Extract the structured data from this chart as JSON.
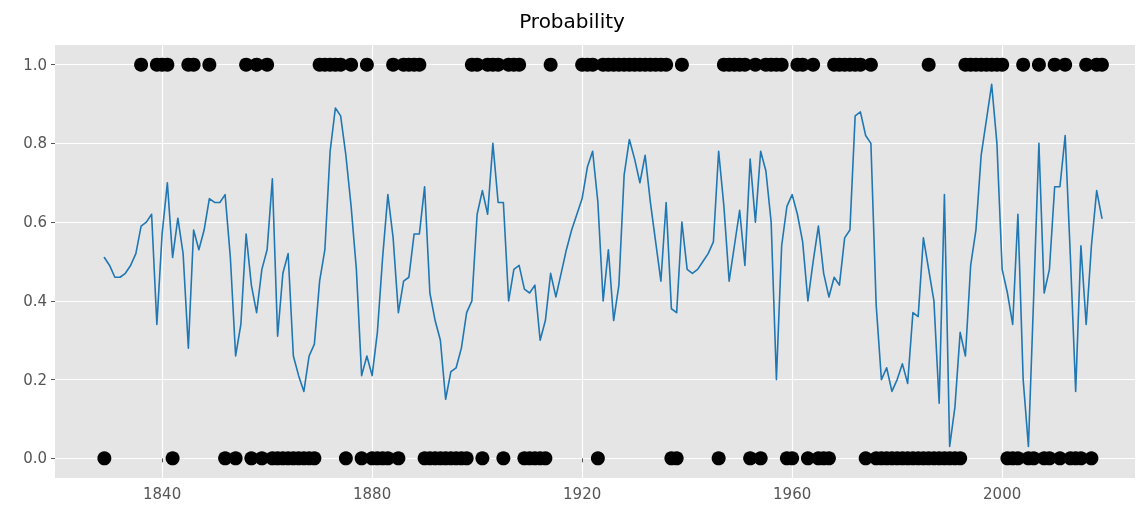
{
  "chart_data": {
    "type": "line",
    "title": "Probability",
    "x": [
      1829,
      1830,
      1831,
      1832,
      1833,
      1834,
      1835,
      1836,
      1837,
      1838,
      1839,
      1840,
      1841,
      1842,
      1843,
      1844,
      1845,
      1846,
      1847,
      1848,
      1849,
      1850,
      1851,
      1852,
      1853,
      1854,
      1855,
      1856,
      1857,
      1858,
      1859,
      1860,
      1861,
      1862,
      1863,
      1864,
      1865,
      1866,
      1867,
      1868,
      1869,
      1870,
      1871,
      1872,
      1873,
      1874,
      1875,
      1876,
      1877,
      1878,
      1879,
      1880,
      1881,
      1882,
      1883,
      1884,
      1885,
      1886,
      1887,
      1888,
      1889,
      1890,
      1891,
      1892,
      1893,
      1894,
      1895,
      1896,
      1897,
      1898,
      1899,
      1900,
      1901,
      1902,
      1903,
      1904,
      1905,
      1906,
      1907,
      1908,
      1909,
      1910,
      1911,
      1912,
      1913,
      1914,
      1915,
      1916,
      1917,
      1918,
      1919,
      1920,
      1921,
      1922,
      1923,
      1924,
      1925,
      1926,
      1927,
      1928,
      1929,
      1930,
      1931,
      1932,
      1933,
      1934,
      1935,
      1936,
      1937,
      1938,
      1939,
      1940,
      1941,
      1942,
      1943,
      1944,
      1945,
      1946,
      1947,
      1948,
      1949,
      1950,
      1951,
      1952,
      1953,
      1954,
      1955,
      1956,
      1957,
      1958,
      1959,
      1960,
      1961,
      1962,
      1963,
      1964,
      1965,
      1966,
      1967,
      1968,
      1969,
      1970,
      1971,
      1972,
      1973,
      1974,
      1975,
      1976,
      1977,
      1978,
      1979,
      1980,
      1981,
      1982,
      1983,
      1984,
      1985,
      1986,
      1987,
      1988,
      1989,
      1990,
      1991,
      1992,
      1993,
      1994,
      1995,
      1996,
      1997,
      1998,
      1999,
      2000,
      2001,
      2002,
      2003,
      2004,
      2005,
      2006,
      2007,
      2008,
      2009,
      2010,
      2011,
      2012,
      2013,
      2014,
      2015,
      2016,
      2017,
      2018,
      2019
    ],
    "series": [
      {
        "color": "#1f77b4",
        "marker": "none",
        "values": [
          0.51,
          0.49,
          0.46,
          0.46,
          0.47,
          0.49,
          0.52,
          0.59,
          0.6,
          0.62,
          0.34,
          0.57,
          0.7,
          0.51,
          0.61,
          0.52,
          0.28,
          0.58,
          0.53,
          0.58,
          0.66,
          0.65,
          0.65,
          0.67,
          0.51,
          0.26,
          0.34,
          0.57,
          0.44,
          0.37,
          0.48,
          0.53,
          0.71,
          0.31,
          0.47,
          0.52,
          0.26,
          0.21,
          0.17,
          0.26,
          0.29,
          0.45,
          0.53,
          0.78,
          0.89,
          0.87,
          0.77,
          0.64,
          0.48,
          0.21,
          0.26,
          0.21,
          0.32,
          0.51,
          0.67,
          0.56,
          0.37,
          0.45,
          0.46,
          0.57,
          0.57,
          0.69,
          0.42,
          0.35,
          0.3,
          0.15,
          0.22,
          0.23,
          0.28,
          0.37,
          0.4,
          0.62,
          0.68,
          0.62,
          0.8,
          0.65,
          0.65,
          0.4,
          0.48,
          0.49,
          0.43,
          0.42,
          0.44,
          0.3,
          0.35,
          0.47,
          0.41,
          0.47,
          0.53,
          0.58,
          0.62,
          0.66,
          0.74,
          0.78,
          0.65,
          0.4,
          0.53,
          0.35,
          0.44,
          0.72,
          0.81,
          0.76,
          0.7,
          0.77,
          0.65,
          0.55,
          0.45,
          0.65,
          0.38,
          0.37,
          0.6,
          0.48,
          0.47,
          0.48,
          0.5,
          0.52,
          0.55,
          0.78,
          0.64,
          0.45,
          0.54,
          0.63,
          0.49,
          0.76,
          0.6,
          0.78,
          0.73,
          0.6,
          0.2,
          0.54,
          0.64,
          0.67,
          0.62,
          0.55,
          0.4,
          0.5,
          0.59,
          0.47,
          0.41,
          0.46,
          0.44,
          0.56,
          0.58,
          0.87,
          0.88,
          0.82,
          0.8,
          0.39,
          0.2,
          0.23,
          0.17,
          0.2,
          0.24,
          0.19,
          0.37,
          0.36,
          0.56,
          0.48,
          0.4,
          0.14,
          0.67,
          0.03,
          0.13,
          0.32,
          0.26,
          0.49,
          0.58,
          0.77,
          0.86,
          0.95,
          0.8,
          0.48,
          0.42,
          0.34,
          0.62,
          0.2,
          0.03,
          0.41,
          0.8,
          0.42,
          0.48,
          0.69,
          0.69,
          0.82,
          0.51,
          0.17,
          0.54,
          0.34,
          0.54,
          0.68,
          0.61
        ]
      },
      {
        "type": "scatter",
        "color": "#000000",
        "marker": "circle",
        "x": [
          1836,
          1839,
          1840,
          1841,
          1845,
          1846,
          1849,
          1856,
          1858,
          1860,
          1870,
          1871,
          1872,
          1873,
          1874,
          1876,
          1879,
          1884,
          1886,
          1887,
          1888,
          1889,
          1899,
          1900,
          1902,
          1903,
          1904,
          1906,
          1907,
          1908,
          1914,
          1920,
          1921,
          1922,
          1924,
          1925,
          1926,
          1927,
          1928,
          1929,
          1930,
          1931,
          1932,
          1933,
          1934,
          1935,
          1936,
          1939,
          1947,
          1948,
          1949,
          1950,
          1951,
          1953,
          1955,
          1956,
          1957,
          1958,
          1961,
          1962,
          1964,
          1968,
          1969,
          1970,
          1971,
          1972,
          1973,
          1975,
          1986,
          1993,
          1994,
          1995,
          1996,
          1997,
          1998,
          1999,
          2000,
          2004,
          2007,
          2010,
          2012,
          2016,
          2018,
          2019
        ],
        "values": [
          1,
          1,
          1,
          1,
          1,
          1,
          1,
          1,
          1,
          1,
          1,
          1,
          1,
          1,
          1,
          1,
          1,
          1,
          1,
          1,
          1,
          1,
          1,
          1,
          1,
          1,
          1,
          1,
          1,
          1,
          1,
          1,
          1,
          1,
          1,
          1,
          1,
          1,
          1,
          1,
          1,
          1,
          1,
          1,
          1,
          1,
          1,
          1,
          1,
          1,
          1,
          1,
          1,
          1,
          1,
          1,
          1,
          1,
          1,
          1,
          1,
          1,
          1,
          1,
          1,
          1,
          1,
          1,
          1,
          1,
          1,
          1,
          1,
          1,
          1,
          1,
          1,
          1,
          1,
          1,
          1,
          1,
          1,
          1
        ]
      },
      {
        "type": "scatter",
        "color": "#000000",
        "marker": "circle",
        "x": [
          1829,
          1842,
          1852,
          1854,
          1857,
          1859,
          1861,
          1862,
          1863,
          1864,
          1865,
          1866,
          1867,
          1868,
          1869,
          1875,
          1878,
          1880,
          1881,
          1882,
          1883,
          1885,
          1890,
          1891,
          1892,
          1893,
          1894,
          1895,
          1896,
          1897,
          1898,
          1901,
          1905,
          1909,
          1910,
          1911,
          1912,
          1913,
          1923,
          1937,
          1938,
          1946,
          1952,
          1954,
          1959,
          1960,
          1963,
          1965,
          1966,
          1967,
          1974,
          1976,
          1977,
          1978,
          1979,
          1980,
          1981,
          1982,
          1983,
          1984,
          1985,
          1986,
          1987,
          1988,
          1989,
          1990,
          1991,
          1992,
          2001,
          2002,
          2003,
          2005,
          2006,
          2008,
          2009,
          2011,
          2013,
          2014,
          2015,
          2017
        ],
        "values": [
          0,
          0,
          0,
          0,
          0,
          0,
          0,
          0,
          0,
          0,
          0,
          0,
          0,
          0,
          0,
          0,
          0,
          0,
          0,
          0,
          0,
          0,
          0,
          0,
          0,
          0,
          0,
          0,
          0,
          0,
          0,
          0,
          0,
          0,
          0,
          0,
          0,
          0,
          0,
          0,
          0,
          0,
          0,
          0,
          0,
          0,
          0,
          0,
          0,
          0,
          0,
          0,
          0,
          0,
          0,
          0,
          0,
          0,
          0,
          0,
          0,
          0,
          0,
          0,
          0,
          0,
          0,
          0,
          0,
          0,
          0,
          0,
          0,
          0,
          0,
          0,
          0,
          0,
          0,
          0
        ]
      }
    ],
    "xlim": [
      1819.6,
      2025.3
    ],
    "xticks": [
      1840,
      1880,
      1920,
      1960,
      2000
    ],
    "ylim": [
      -0.05,
      1.05
    ],
    "yticks": [
      {
        "value": 0,
        "label": "0.0"
      },
      {
        "value": 0.2,
        "label": "0.2"
      },
      {
        "value": 0.4,
        "label": "0.4"
      },
      {
        "value": 0.6,
        "label": "0.6"
      },
      {
        "value": 0.8,
        "label": "0.8"
      },
      {
        "value": 1,
        "label": "1.0"
      }
    ],
    "grid": true
  }
}
